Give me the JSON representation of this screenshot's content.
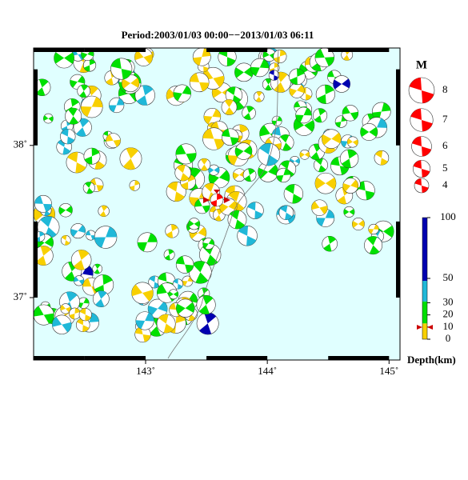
{
  "title": "Period:2003/01/03 00:00−−2013/01/03 06:11",
  "map": {
    "lon_range": [
      142.08,
      145.09
    ],
    "lat_range": [
      36.59,
      38.64
    ],
    "lon_ticks": [
      {
        "value": 143,
        "label": "143˚"
      },
      {
        "value": 144,
        "label": "144˚"
      },
      {
        "value": 145,
        "label": "145˚"
      }
    ],
    "lat_ticks": [
      {
        "value": 38,
        "label": "38˚"
      },
      {
        "value": 37,
        "label": "37˚"
      }
    ]
  },
  "magnitude_legend": {
    "title": "M",
    "values": [
      8,
      7,
      6,
      5,
      4
    ]
  },
  "depth_legend": {
    "title": "Depth(km)",
    "ticks": [
      100,
      50,
      30,
      20,
      10,
      0
    ]
  }
}
